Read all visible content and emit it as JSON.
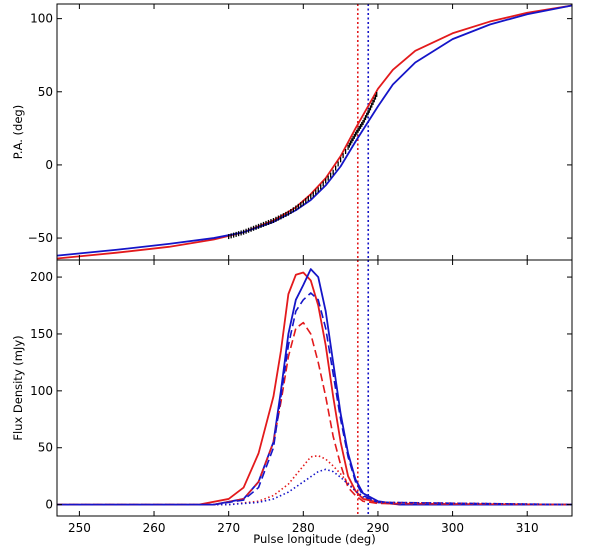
{
  "chart_data": [
    {
      "type": "line",
      "ylabel": "P.A. (deg)",
      "xlim": [
        247,
        316
      ],
      "ylim": [
        -65,
        110
      ],
      "yticks": [
        -50,
        0,
        50,
        100
      ],
      "yticklabels": [
        "−50",
        "0",
        "50",
        "100"
      ],
      "vlines": [
        {
          "x": 287.3,
          "color": "#e31a1c",
          "style": "dotted"
        },
        {
          "x": 288.7,
          "color": "#1515c8",
          "style": "dotted"
        }
      ],
      "series": [
        {
          "color": "#e31a1c",
          "style": "solid",
          "x": [
            247,
            255,
            262,
            268,
            272,
            276,
            279,
            281,
            283,
            285,
            287,
            288,
            289,
            290,
            292,
            295,
            300,
            305,
            310,
            316
          ],
          "y": [
            -64,
            -60,
            -56,
            -51,
            -46,
            -38,
            -29,
            -20,
            -9,
            6,
            25,
            34,
            43,
            52,
            65,
            78,
            90,
            98,
            104,
            109
          ]
        },
        {
          "color": "#1515c8",
          "style": "solid",
          "x": [
            247,
            255,
            262,
            268,
            272,
            276,
            279,
            281,
            283,
            285,
            287,
            289,
            290,
            292,
            295,
            300,
            305,
            310,
            316
          ],
          "y": [
            -62,
            -58,
            -54,
            -50,
            -46,
            -39,
            -31,
            -24,
            -14,
            -1,
            16,
            32,
            40,
            55,
            70,
            86,
            96,
            103,
            109
          ]
        },
        {
          "color": "#000000",
          "style": "points",
          "x": [
            270,
            272,
            274,
            276,
            278,
            280,
            282,
            284,
            286,
            287,
            288,
            289,
            290
          ],
          "y": [
            -49,
            -46,
            -42,
            -38,
            -33,
            -26,
            -17,
            -5,
            12,
            21,
            29,
            39,
            50
          ]
        }
      ]
    },
    {
      "type": "line",
      "xlabel": "Pulse longitude (deg)",
      "ylabel": "Flux Density (mJy)",
      "xlim": [
        247,
        316
      ],
      "ylim": [
        -10,
        215
      ],
      "xticks": [
        250,
        260,
        270,
        280,
        290,
        300,
        310
      ],
      "xticklabels": [
        "250",
        "260",
        "270",
        "280",
        "290",
        "300",
        "310"
      ],
      "yticks": [
        0,
        50,
        100,
        150,
        200
      ],
      "yticklabels": [
        "0",
        "50",
        "100",
        "150",
        "200"
      ],
      "vlines": [
        {
          "x": 287.3,
          "color": "#e31a1c",
          "style": "dotted"
        },
        {
          "x": 288.7,
          "color": "#1515c8",
          "style": "dotted"
        }
      ],
      "series": [
        {
          "color": "#e31a1c",
          "style": "solid",
          "x": [
            247,
            266,
            270,
            272,
            274,
            276,
            277,
            278,
            279,
            280,
            281,
            282,
            283,
            284,
            285,
            286,
            287,
            288,
            290,
            293,
            316
          ],
          "y": [
            0,
            0,
            5,
            15,
            45,
            95,
            135,
            185,
            202,
            204,
            197,
            175,
            140,
            95,
            55,
            25,
            12,
            5,
            2,
            0,
            0
          ]
        },
        {
          "color": "#1515c8",
          "style": "solid",
          "x": [
            247,
            268,
            272,
            274,
            276,
            277,
            278,
            279,
            280,
            281,
            282,
            283,
            284,
            285,
            286,
            287,
            288,
            290,
            293,
            316
          ],
          "y": [
            0,
            0,
            5,
            20,
            55,
            100,
            150,
            180,
            193,
            207,
            200,
            170,
            125,
            80,
            45,
            22,
            10,
            3,
            0,
            0
          ]
        },
        {
          "color": "#e31a1c",
          "style": "dashed",
          "x": [
            247,
            268,
            272,
            274,
            276,
            277,
            278,
            279,
            280,
            281,
            282,
            283,
            284,
            285,
            286,
            287,
            288,
            290,
            316
          ],
          "y": [
            0,
            0,
            5,
            20,
            55,
            90,
            130,
            155,
            160,
            150,
            125,
            95,
            60,
            35,
            15,
            8,
            3,
            1,
            0
          ]
        },
        {
          "color": "#1515c8",
          "style": "dashed",
          "x": [
            247,
            268,
            272,
            274,
            276,
            277,
            278,
            279,
            280,
            281,
            282,
            283,
            284,
            285,
            286,
            287,
            288,
            290,
            316
          ],
          "y": [
            0,
            0,
            4,
            15,
            50,
            95,
            140,
            170,
            180,
            186,
            180,
            155,
            115,
            75,
            42,
            20,
            8,
            2,
            0
          ]
        },
        {
          "color": "#e31a1c",
          "style": "dotted",
          "x": [
            247,
            270,
            274,
            276,
            278,
            280,
            281,
            282,
            283,
            284,
            285,
            286,
            287,
            288,
            290,
            316
          ],
          "y": [
            0,
            0,
            3,
            8,
            18,
            34,
            42,
            43,
            40,
            34,
            27,
            19,
            12,
            6,
            2,
            0
          ]
        },
        {
          "color": "#1515c8",
          "style": "dotted",
          "x": [
            247,
            270,
            274,
            276,
            278,
            280,
            282,
            283,
            284,
            285,
            286,
            287,
            288,
            290,
            316
          ],
          "y": [
            0,
            0,
            2,
            5,
            11,
            20,
            29,
            31,
            29,
            24,
            18,
            12,
            7,
            2,
            0
          ]
        }
      ]
    }
  ]
}
